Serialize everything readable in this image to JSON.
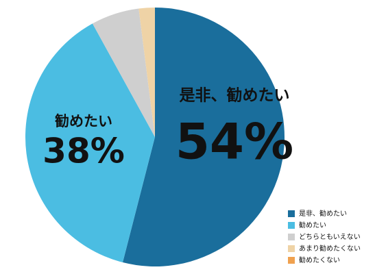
{
  "chart_data": {
    "type": "pie",
    "categories": [
      "是非、勧めたい",
      "勧めたい",
      "どちらともいえない",
      "あまり勧めたくない",
      "勧めたくない"
    ],
    "values": [
      54,
      38,
      6,
      2,
      0
    ],
    "value_labels": [
      "54%",
      "38%",
      null,
      null,
      null
    ],
    "colors": [
      "#1a6e9c",
      "#4bbde2",
      "#cfcfcf",
      "#efd3a6",
      "#f0a14f"
    ],
    "legend": "bottom-right"
  }
}
